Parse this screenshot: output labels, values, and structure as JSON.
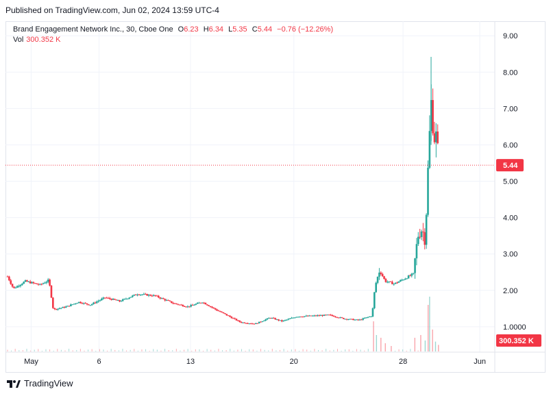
{
  "published": "Published on TradingView.com, Jun 02, 2024 13:59 UTC-4",
  "legend": {
    "symbol": "Brand Engagement Network Inc., 30, Cboe One",
    "open_label": "O",
    "open": "6.23",
    "high_label": "H",
    "high": "6.34",
    "low_label": "L",
    "low": "5.35",
    "close_label": "C",
    "close": "5.44",
    "change": "−0.76 (−12.26%)",
    "vol_label": "Vol",
    "vol_value": "300.352 K"
  },
  "footer": {
    "brand": "TradingView"
  },
  "colors": {
    "up": "#26a69a",
    "down": "#f23645",
    "grid": "#f0f3fa"
  },
  "chart_data": {
    "type": "candlestick",
    "x_ticks": [
      "May",
      "6",
      "13",
      "20",
      "28",
      "Jun"
    ],
    "y_ticks": [
      "1.0000",
      "2.00",
      "3.00",
      "4.00",
      "5.00",
      "6.00",
      "7.00",
      "8.00",
      "9.00"
    ],
    "ylim": [
      0.3,
      9.4
    ],
    "last_price": "5.44",
    "last_volume": "300.352 K",
    "price_path": [
      {
        "t": 0,
        "p": 2.38
      },
      {
        "t": 2,
        "p": 2.05
      },
      {
        "t": 6,
        "p": 2.25
      },
      {
        "t": 11,
        "p": 2.15
      },
      {
        "t": 14,
        "p": 2.28
      },
      {
        "t": 15.5,
        "p": 1.47
      },
      {
        "t": 20,
        "p": 1.55
      },
      {
        "t": 24,
        "p": 1.68
      },
      {
        "t": 28,
        "p": 1.6
      },
      {
        "t": 33,
        "p": 1.8
      },
      {
        "t": 38,
        "p": 1.7
      },
      {
        "t": 44,
        "p": 1.9
      },
      {
        "t": 50,
        "p": 1.85
      },
      {
        "t": 56,
        "p": 1.65
      },
      {
        "t": 61,
        "p": 1.55
      },
      {
        "t": 66,
        "p": 1.68
      },
      {
        "t": 71,
        "p": 1.45
      },
      {
        "t": 74,
        "p": 1.33
      },
      {
        "t": 79,
        "p": 1.12
      },
      {
        "t": 84,
        "p": 1.08
      },
      {
        "t": 89,
        "p": 1.25
      },
      {
        "t": 93,
        "p": 1.15
      },
      {
        "t": 98,
        "p": 1.28
      },
      {
        "t": 104,
        "p": 1.3
      },
      {
        "t": 109,
        "p": 1.32
      },
      {
        "t": 114,
        "p": 1.22
      },
      {
        "t": 119,
        "p": 1.18
      },
      {
        "t": 123.5,
        "p": 1.3
      },
      {
        "t": 124.5,
        "p": 2.1
      },
      {
        "t": 126,
        "p": 2.55
      },
      {
        "t": 128,
        "p": 2.25
      },
      {
        "t": 131,
        "p": 2.18
      },
      {
        "t": 134,
        "p": 2.3
      },
      {
        "t": 137.5,
        "p": 2.45
      },
      {
        "t": 139,
        "p": 3.5
      },
      {
        "t": 140.5,
        "p": 3.7
      },
      {
        "t": 141.5,
        "p": 3.35
      },
      {
        "t": 142.5,
        "p": 5.4
      },
      {
        "t": 143.5,
        "p": 7.2
      },
      {
        "t": 144.5,
        "p": 6.2
      },
      {
        "t": 145.5,
        "p": 6.25
      },
      {
        "t": 146,
        "p": 5.44
      }
    ],
    "volume_spikes": [
      {
        "t": 124,
        "v": 0.55
      },
      {
        "t": 125,
        "v": 0.3
      },
      {
        "t": 126.5,
        "v": 0.25
      },
      {
        "t": 128,
        "v": 0.15
      },
      {
        "t": 130,
        "v": 0.1
      },
      {
        "t": 138,
        "v": 0.25
      },
      {
        "t": 140,
        "v": 0.3
      },
      {
        "t": 141.5,
        "v": 0.2
      },
      {
        "t": 142.5,
        "v": 0.85
      },
      {
        "t": 143,
        "v": 1.0
      },
      {
        "t": 144,
        "v": 0.4
      },
      {
        "t": 145,
        "v": 0.18
      },
      {
        "t": 146,
        "v": 0.12
      }
    ],
    "volume_scale": {
      "max_label": "1.6 M",
      "max": 1.6
    }
  }
}
